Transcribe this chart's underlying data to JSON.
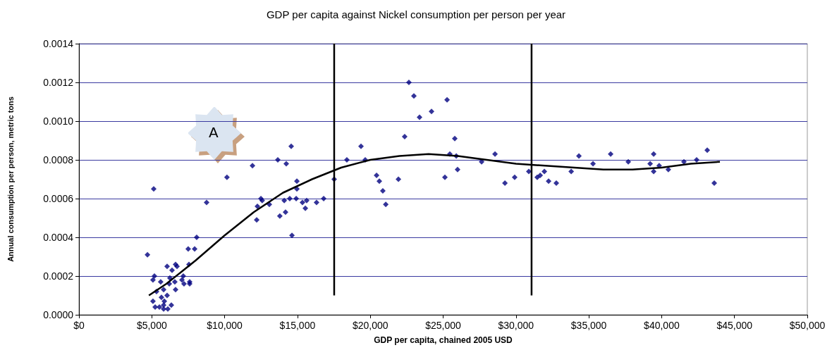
{
  "chart_data": {
    "type": "scatter",
    "title": "GDP per capita against Nickel consumption per person per year",
    "xlabel": "GDP per capita, chained 2005 USD",
    "ylabel": "Annual consumption per person, metric tons",
    "annotations": [
      "A"
    ],
    "xlim": [
      0,
      50000
    ],
    "xticks": [
      {
        "value": 0,
        "label": "$0"
      },
      {
        "value": 5000,
        "label": "$5,000"
      },
      {
        "value": 10000,
        "label": "$10,000"
      },
      {
        "value": 15000,
        "label": "$15,000"
      },
      {
        "value": 20000,
        "label": "$20,000"
      },
      {
        "value": 25000,
        "label": "$25,000"
      },
      {
        "value": 30000,
        "label": "$30,000"
      },
      {
        "value": 35000,
        "label": "$35,000"
      },
      {
        "value": 40000,
        "label": "$40,000"
      },
      {
        "value": 45000,
        "label": "$45,000"
      },
      {
        "value": 50000,
        "label": "$50,000"
      }
    ],
    "ylim": [
      0,
      0.0014
    ],
    "yticks": [
      {
        "value": 0,
        "label": "0.0000"
      },
      {
        "value": 0.0002,
        "label": "0.0002"
      },
      {
        "value": 0.0004,
        "label": "0.0004"
      },
      {
        "value": 0.0006,
        "label": "0.0006"
      },
      {
        "value": 0.0008,
        "label": "0.0008"
      },
      {
        "value": 0.001,
        "label": "0.0010"
      },
      {
        "value": 0.0012,
        "label": "0.0012"
      },
      {
        "value": 0.0014,
        "label": "0.0014"
      }
    ],
    "grid": "y",
    "marker": "diamond",
    "series": [
      {
        "color": "#000080",
        "x": [
          5130,
          10160,
          8760,
          8080,
          7500,
          7940,
          4700,
          7550,
          6050,
          6630,
          6730,
          6390,
          5180,
          5080,
          6240,
          7160,
          5610,
          6580,
          6200,
          7070,
          7600,
          7600,
          7210,
          5320,
          5810,
          6630,
          6050,
          5660,
          5860,
          5080,
          5810,
          6340,
          5230,
          5520,
          5810,
          6100,
          12200,
          12250,
          12490,
          12580,
          13070,
          13790,
          14180,
          14090,
          14620,
          14470,
          14910,
          14960,
          14960,
          15340,
          15630,
          15540,
          16310,
          16800,
          17520,
          11910,
          13650,
          14230,
          14570,
          18390,
          19360,
          19650,
          20430,
          20620,
          20860,
          21060,
          21930,
          22360,
          22650,
          22990,
          23380,
          24200,
          25120,
          25270,
          25460,
          25900,
          25800,
          25990,
          27640,
          28560,
          29240,
          29910,
          30880,
          31460,
          31660,
          31950,
          32240,
          32770,
          33790,
          34320,
          35290,
          36500,
          37710,
          39210,
          39450,
          39450,
          39830,
          40460,
          41530,
          42400,
          43130,
          43610
        ],
        "values": [
          0.00065,
          0.00071,
          0.00058,
          0.0004,
          0.00034,
          0.00034,
          0.00031,
          0.00026,
          0.00025,
          0.00026,
          0.00025,
          0.00023,
          0.0002,
          0.00018,
          0.00019,
          0.0002,
          0.00017,
          0.00017,
          0.00016,
          0.00018,
          0.00017,
          0.00016,
          0.00016,
          0.00012,
          0.00013,
          0.00013,
          0.0001,
          9e-05,
          7e-05,
          7e-05,
          5e-05,
          5e-05,
          4e-05,
          4e-05,
          3e-05,
          3e-05,
          0.00049,
          0.00056,
          0.0006,
          0.00059,
          0.00057,
          0.00051,
          0.00053,
          0.00059,
          0.00041,
          0.0006,
          0.0006,
          0.00065,
          0.00069,
          0.00058,
          0.00059,
          0.00055,
          0.00058,
          0.0006,
          0.0007,
          0.00077,
          0.0008,
          0.00078,
          0.00087,
          0.0008,
          0.00087,
          0.0008,
          0.00072,
          0.00069,
          0.00064,
          0.00057,
          0.0007,
          0.00092,
          0.0012,
          0.00113,
          0.00102,
          0.00105,
          0.00071,
          0.00111,
          0.00083,
          0.00082,
          0.00091,
          0.00075,
          0.00079,
          0.00083,
          0.00068,
          0.00071,
          0.00074,
          0.00071,
          0.00072,
          0.00074,
          0.00069,
          0.00068,
          0.00074,
          0.00082,
          0.00078,
          0.00083,
          0.00079,
          0.00078,
          0.00083,
          0.00074,
          0.00077,
          0.00075,
          0.00079,
          0.0008,
          0.00085,
          0.00068
        ]
      },
      {
        "type": "line",
        "marker": "none",
        "color": "#000000",
        "x": [
          4800,
          6000,
          8000,
          10000,
          12000,
          14000,
          16000,
          18000,
          20000,
          22000,
          24000,
          26000,
          28000,
          30000,
          32000,
          34000,
          36000,
          38000,
          40000,
          42000,
          44000
        ],
        "values": [
          0.0001,
          0.00016,
          0.00028,
          0.00041,
          0.00053,
          0.00063,
          0.0007,
          0.00076,
          0.0008,
          0.00082,
          0.00083,
          0.00082,
          0.0008,
          0.00078,
          0.00077,
          0.00076,
          0.00075,
          0.00075,
          0.00076,
          0.00078,
          0.00079
        ]
      },
      {
        "type": "line",
        "marker": "none",
        "color": "#000000",
        "x": [
          17520,
          17520
        ],
        "values": [
          0.0001,
          0.0014
        ]
      },
      {
        "type": "line",
        "marker": "none",
        "color": "#000000",
        "x": [
          31070,
          31070
        ],
        "values": [
          0.0001,
          0.0014
        ]
      }
    ]
  }
}
